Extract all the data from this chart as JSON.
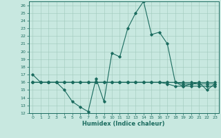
{
  "xlabel": "Humidex (Indice chaleur)",
  "xlim": [
    -0.5,
    23.5
  ],
  "ylim": [
    12,
    26.5
  ],
  "yticks": [
    12,
    13,
    14,
    15,
    16,
    17,
    18,
    19,
    20,
    21,
    22,
    23,
    24,
    25,
    26
  ],
  "xticks": [
    0,
    1,
    2,
    3,
    4,
    5,
    6,
    7,
    8,
    9,
    10,
    11,
    12,
    13,
    14,
    15,
    16,
    17,
    18,
    19,
    20,
    21,
    22,
    23
  ],
  "bg_color": "#c8e8e0",
  "line_color": "#1a6b5e",
  "grid_color": "#a0c8bc",
  "line1_x": [
    0,
    1,
    2,
    3,
    4,
    5,
    6,
    7,
    8,
    9,
    10,
    11,
    12,
    13,
    14,
    15,
    16,
    17,
    18,
    19,
    20,
    21,
    22,
    23
  ],
  "line1_y": [
    17,
    16,
    16,
    16,
    15,
    13.5,
    12.8,
    12.2,
    16.5,
    13.5,
    19.8,
    19.3,
    23,
    25,
    26.5,
    22.2,
    22.5,
    21,
    16,
    15.5,
    15.8,
    16,
    15,
    15.8
  ],
  "line2_x": [
    0,
    1,
    2,
    3,
    4,
    5,
    6,
    7,
    8,
    9,
    10,
    11,
    12,
    13,
    14,
    15,
    16,
    17,
    18,
    19,
    20,
    21,
    22,
    23
  ],
  "line2_y": [
    16,
    16,
    16,
    16,
    16,
    16,
    16,
    16,
    16,
    16,
    16,
    16,
    16,
    16,
    16,
    16,
    16,
    16,
    16,
    16,
    16,
    16,
    16,
    16
  ],
  "line3_x": [
    0,
    1,
    2,
    3,
    4,
    5,
    6,
    7,
    8,
    9,
    10,
    11,
    12,
    13,
    14,
    15,
    16,
    17,
    18,
    19,
    20,
    21,
    22,
    23
  ],
  "line3_y": [
    16,
    16,
    16,
    16,
    16,
    16,
    16,
    16,
    16,
    16,
    16,
    16,
    16,
    16,
    16,
    16,
    16,
    16,
    16,
    15.8,
    15.8,
    15.8,
    15.8,
    15.8
  ],
  "line4_x": [
    0,
    1,
    2,
    3,
    4,
    5,
    6,
    7,
    8,
    9,
    10,
    11,
    12,
    13,
    14,
    15,
    16,
    17,
    18,
    19,
    20,
    21,
    22,
    23
  ],
  "line4_y": [
    16,
    16,
    16,
    16,
    16,
    16,
    16,
    16,
    16,
    16,
    16,
    16,
    16,
    16,
    16,
    16,
    16,
    15.8,
    15.5,
    15.5,
    15.5,
    15.5,
    15.5,
    15.5
  ],
  "tick_fontsize": 4.5,
  "xlabel_fontsize": 6,
  "marker_size": 1.8,
  "line_width": 0.8
}
